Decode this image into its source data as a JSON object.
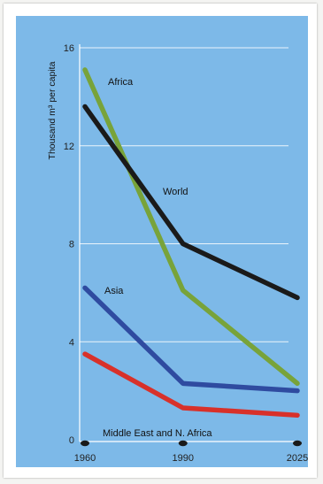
{
  "chart_data": {
    "type": "line",
    "ylabel": "Thousand m³ per capita",
    "x": [
      1960,
      1990,
      2025
    ],
    "x_tick_labels": [
      "1960",
      "1990",
      "2025"
    ],
    "ylim": [
      0,
      16
    ],
    "y_ticks": [
      0,
      4,
      8,
      12,
      16
    ],
    "y_tick_labels": [
      "0",
      "4",
      "8",
      "12",
      "16"
    ],
    "grid": true,
    "legend": "inline labels",
    "background_color": "#7db9e8",
    "series": [
      {
        "name": "Africa",
        "color": "#78a33a",
        "values": [
          15.1,
          6.1,
          2.3
        ]
      },
      {
        "name": "World",
        "color": "#1a1a1a",
        "values": [
          13.6,
          8.0,
          5.8
        ]
      },
      {
        "name": "Asia",
        "color": "#2f4ba0",
        "values": [
          6.2,
          2.3,
          2.0
        ]
      },
      {
        "name": "Middle East and N. Africa",
        "color": "#d8312a",
        "values": [
          3.5,
          1.3,
          1.0
        ]
      }
    ],
    "series_labels": [
      {
        "series": 0,
        "text": "Africa"
      },
      {
        "series": 1,
        "text": "World"
      },
      {
        "series": 2,
        "text": "Asia"
      },
      {
        "series": 3,
        "text": "Middle East and N. Africa"
      }
    ]
  }
}
